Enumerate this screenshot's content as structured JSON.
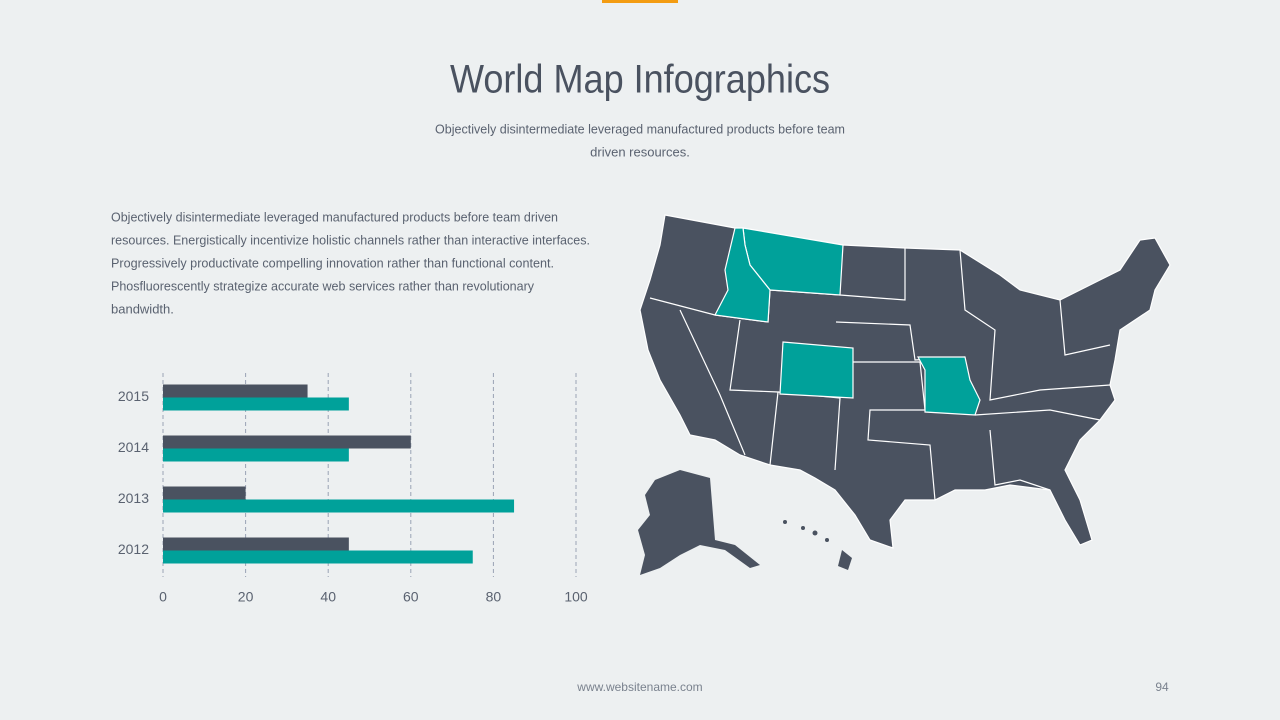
{
  "header": {
    "title": "World Map Infographics",
    "subtitle": [
      "Objectively disintermediate leveraged manufactured products before team",
      "driven resources."
    ]
  },
  "body": [
    "Objectively disintermediate leveraged manufactured products before team driven",
    "resources. Energistically incentivize holistic channels rather than interactive interfaces.",
    "Progressively productivate compelling innovation rather than functional content.",
    "Phosfluorescently strategize accurate web services rather than revolutionary",
    "bandwidth."
  ],
  "footer": {
    "website": "www.websitename.com",
    "page": "94"
  },
  "chart_data": {
    "type": "hbar",
    "categories": [
      "2015",
      "2014",
      "2013",
      "2012"
    ],
    "series": [
      {
        "color": "#4a5260",
        "values": [
          35,
          60,
          20,
          45
        ]
      },
      {
        "color": "#00a19a",
        "values": [
          45,
          45,
          85,
          75
        ]
      }
    ],
    "xlim": [
      0,
      100
    ],
    "xticks": [
      0,
      20,
      40,
      60,
      80,
      100
    ],
    "grid": true
  }
}
